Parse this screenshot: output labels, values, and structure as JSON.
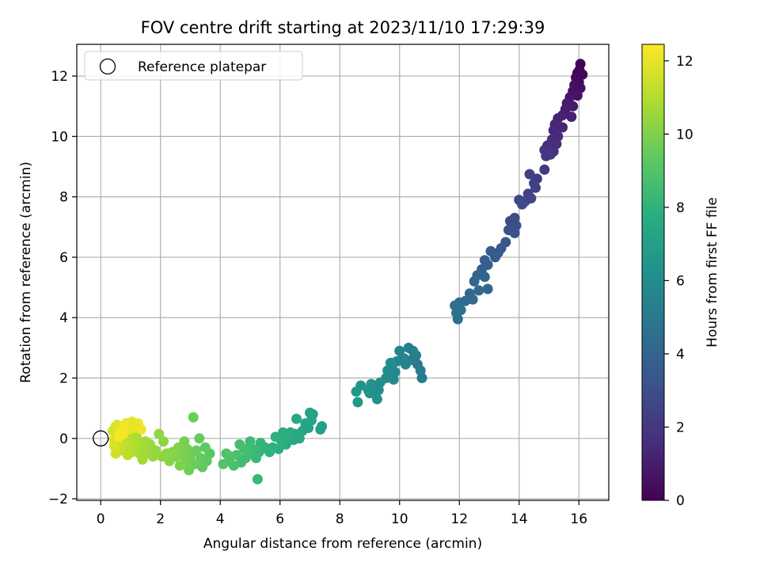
{
  "chart_data": {
    "type": "scatter",
    "title": "FOV centre drift starting at 2023/11/10 17:29:39",
    "xlabel": "Angular distance from reference (arcmin)",
    "ylabel": "Rotation from reference (arcmin)",
    "xlim": [
      -0.8,
      17
    ],
    "ylim": [
      -2.05,
      13.05
    ],
    "xticks": [
      0,
      2,
      4,
      6,
      8,
      10,
      12,
      14,
      16
    ],
    "yticks": [
      -2,
      0,
      2,
      4,
      6,
      8,
      10,
      12
    ],
    "grid": true,
    "legend": {
      "position": "top-left",
      "entries": [
        "Reference platepar"
      ]
    },
    "colorbar": {
      "label": "Hours from first FF file",
      "range": [
        0,
        12.45
      ],
      "ticks": [
        0,
        2,
        4,
        6,
        8,
        10,
        12
      ],
      "colormap": "viridis"
    },
    "reference_point": {
      "x": 0,
      "y": 0
    },
    "series": [
      {
        "marker": "filled-circle",
        "points": [
          [
            16.05,
            12.4,
            0.0
          ],
          [
            16.02,
            12.2,
            0.1
          ],
          [
            15.95,
            12.1,
            0.15
          ],
          [
            16.12,
            12.05,
            0.2
          ],
          [
            15.9,
            11.95,
            0.3
          ],
          [
            16.0,
            11.8,
            0.35
          ],
          [
            15.85,
            11.7,
            0.45
          ],
          [
            16.05,
            11.6,
            0.5
          ],
          [
            15.8,
            11.5,
            0.6
          ],
          [
            15.95,
            11.35,
            0.65
          ],
          [
            15.7,
            11.3,
            0.75
          ],
          [
            15.6,
            11.1,
            0.85
          ],
          [
            15.8,
            11.0,
            0.9
          ],
          [
            15.55,
            10.9,
            1.0
          ],
          [
            15.45,
            10.7,
            1.1
          ],
          [
            15.75,
            10.65,
            1.15
          ],
          [
            15.3,
            10.6,
            1.2
          ],
          [
            15.2,
            10.4,
            1.3
          ],
          [
            15.45,
            10.3,
            1.35
          ],
          [
            15.15,
            10.2,
            1.4
          ],
          [
            15.3,
            10.0,
            1.5
          ],
          [
            15.1,
            9.9,
            1.6
          ],
          [
            15.25,
            9.75,
            1.65
          ],
          [
            14.95,
            9.7,
            1.75
          ],
          [
            15.15,
            9.5,
            1.85
          ],
          [
            14.85,
            9.55,
            1.9
          ],
          [
            15.05,
            9.4,
            1.95
          ],
          [
            14.9,
            9.35,
            2.0
          ],
          [
            14.85,
            8.9,
            2.1
          ],
          [
            14.6,
            8.6,
            2.2
          ],
          [
            14.5,
            8.45,
            2.3
          ],
          [
            14.35,
            8.75,
            2.35
          ],
          [
            14.55,
            8.3,
            2.4
          ],
          [
            14.3,
            8.1,
            2.5
          ],
          [
            14.4,
            7.95,
            2.55
          ],
          [
            14.2,
            7.85,
            2.6
          ],
          [
            14.0,
            7.9,
            2.7
          ],
          [
            14.1,
            7.75,
            2.75
          ],
          [
            13.85,
            7.3,
            2.9
          ],
          [
            13.7,
            7.2,
            3.0
          ],
          [
            13.9,
            7.05,
            3.05
          ],
          [
            13.65,
            6.9,
            3.1
          ],
          [
            13.85,
            6.8,
            3.15
          ],
          [
            13.55,
            6.5,
            3.3
          ],
          [
            13.4,
            6.3,
            3.4
          ],
          [
            13.3,
            6.15,
            3.5
          ],
          [
            13.05,
            6.2,
            3.55
          ],
          [
            13.2,
            6.0,
            3.6
          ],
          [
            12.85,
            5.9,
            3.7
          ],
          [
            12.95,
            5.75,
            3.75
          ],
          [
            12.75,
            5.6,
            3.85
          ],
          [
            12.6,
            5.4,
            3.95
          ],
          [
            12.85,
            5.35,
            4.0
          ],
          [
            12.5,
            5.2,
            4.05
          ],
          [
            12.95,
            4.95,
            4.1
          ],
          [
            12.65,
            4.9,
            4.15
          ],
          [
            12.35,
            4.8,
            4.2
          ],
          [
            12.45,
            4.6,
            4.3
          ],
          [
            12.2,
            4.55,
            4.35
          ],
          [
            12.0,
            4.5,
            4.4
          ],
          [
            11.85,
            4.4,
            4.45
          ],
          [
            12.05,
            4.25,
            4.5
          ],
          [
            11.9,
            4.15,
            4.55
          ],
          [
            11.95,
            3.95,
            4.6
          ],
          [
            10.75,
            2.0,
            5.1
          ],
          [
            10.7,
            2.25,
            5.15
          ],
          [
            10.6,
            2.45,
            5.2
          ],
          [
            10.55,
            2.75,
            5.25
          ],
          [
            10.45,
            2.9,
            5.3
          ],
          [
            10.3,
            3.0,
            5.35
          ],
          [
            10.4,
            2.6,
            5.4
          ],
          [
            10.2,
            2.45,
            5.5
          ],
          [
            10.15,
            2.65,
            5.55
          ],
          [
            10.0,
            2.9,
            5.6
          ],
          [
            10.05,
            2.6,
            5.65
          ],
          [
            9.9,
            2.55,
            5.7
          ],
          [
            9.75,
            2.45,
            5.75
          ],
          [
            9.85,
            2.2,
            5.8
          ],
          [
            9.65,
            2.1,
            5.85
          ],
          [
            9.8,
            1.95,
            5.9
          ],
          [
            9.55,
            2.0,
            5.95
          ],
          [
            9.6,
            2.25,
            6.0
          ],
          [
            9.7,
            2.5,
            6.05
          ],
          [
            9.35,
            1.85,
            6.1
          ],
          [
            9.3,
            1.6,
            6.15
          ],
          [
            9.2,
            1.75,
            6.2
          ],
          [
            9.1,
            1.55,
            6.25
          ],
          [
            9.25,
            1.3,
            6.3
          ],
          [
            9.0,
            1.5,
            6.35
          ],
          [
            9.05,
            1.8,
            6.4
          ],
          [
            8.95,
            1.6,
            6.45
          ],
          [
            8.7,
            1.75,
            6.5
          ],
          [
            8.55,
            1.55,
            6.6
          ],
          [
            8.6,
            1.2,
            6.7
          ],
          [
            7.4,
            0.4,
            7.0
          ],
          [
            7.35,
            0.3,
            7.05
          ],
          [
            7.1,
            0.8,
            7.1
          ],
          [
            7.0,
            0.85,
            7.15
          ],
          [
            7.05,
            0.6,
            7.2
          ],
          [
            6.95,
            0.35,
            7.25
          ],
          [
            6.85,
            0.5,
            7.3
          ],
          [
            6.75,
            0.25,
            7.35
          ],
          [
            6.55,
            0.65,
            7.4
          ],
          [
            6.65,
            0.0,
            7.45
          ],
          [
            6.5,
            0.15,
            7.5
          ],
          [
            6.45,
            -0.05,
            7.55
          ],
          [
            6.35,
            0.2,
            7.6
          ],
          [
            6.25,
            0.1,
            7.65
          ],
          [
            6.2,
            -0.2,
            7.7
          ],
          [
            6.1,
            0.2,
            7.75
          ],
          [
            6.05,
            -0.1,
            7.8
          ],
          [
            5.95,
            -0.35,
            7.85
          ],
          [
            5.85,
            0.05,
            7.9
          ],
          [
            5.75,
            -0.3,
            7.95
          ],
          [
            5.65,
            -0.45,
            8.0
          ],
          [
            5.5,
            -0.3,
            8.05
          ],
          [
            5.35,
            -0.15,
            8.2
          ],
          [
            5.3,
            -0.45,
            8.3
          ],
          [
            5.25,
            -1.35,
            8.35
          ],
          [
            5.2,
            -0.65,
            8.4
          ],
          [
            5.1,
            -0.35,
            8.45
          ],
          [
            5.0,
            -0.1,
            8.5
          ],
          [
            4.95,
            -0.5,
            8.55
          ],
          [
            4.85,
            -0.65,
            8.6
          ],
          [
            4.8,
            -0.35,
            8.65
          ],
          [
            4.7,
            -0.8,
            8.7
          ],
          [
            4.65,
            -0.2,
            8.75
          ],
          [
            4.55,
            -0.55,
            8.8
          ],
          [
            4.45,
            -0.9,
            8.85
          ],
          [
            4.35,
            -0.6,
            8.9
          ],
          [
            4.3,
            -0.75,
            8.95
          ],
          [
            4.2,
            -0.5,
            9.0
          ],
          [
            4.1,
            -0.85,
            9.05
          ],
          [
            3.65,
            -0.5,
            9.2
          ],
          [
            3.55,
            -0.75,
            9.3
          ],
          [
            3.5,
            -0.3,
            9.35
          ],
          [
            3.4,
            -0.95,
            9.4
          ],
          [
            3.35,
            -0.65,
            9.45
          ],
          [
            3.3,
            0.0,
            9.5
          ],
          [
            3.2,
            -0.4,
            9.55
          ],
          [
            3.15,
            -0.85,
            9.6
          ],
          [
            3.1,
            0.7,
            9.65
          ],
          [
            3.0,
            -0.6,
            9.7
          ],
          [
            2.95,
            -1.05,
            9.75
          ],
          [
            2.9,
            -0.35,
            9.8
          ],
          [
            2.85,
            -0.75,
            9.85
          ],
          [
            2.8,
            -0.1,
            9.9
          ],
          [
            2.7,
            -0.55,
            9.95
          ],
          [
            2.65,
            -0.9,
            10.0
          ],
          [
            2.6,
            -0.3,
            10.05
          ],
          [
            2.5,
            -0.6,
            10.1
          ],
          [
            2.4,
            -0.45,
            10.15
          ],
          [
            2.3,
            -0.75,
            10.2
          ],
          [
            2.2,
            -0.5,
            10.25
          ],
          [
            2.1,
            -0.1,
            10.3
          ],
          [
            2.05,
            -0.6,
            10.35
          ],
          [
            1.95,
            0.15,
            10.4
          ],
          [
            1.85,
            -0.4,
            10.45
          ],
          [
            1.75,
            -0.6,
            10.5
          ],
          [
            1.65,
            -0.2,
            10.55
          ],
          [
            1.55,
            -0.5,
            10.6
          ],
          [
            1.5,
            -0.1,
            10.65
          ],
          [
            1.45,
            -0.35,
            10.7
          ],
          [
            1.4,
            -0.7,
            10.75
          ],
          [
            1.3,
            -0.5,
            10.8
          ],
          [
            1.25,
            -0.2,
            10.85
          ],
          [
            1.2,
            0.05,
            10.9
          ],
          [
            1.15,
            -0.3,
            10.95
          ],
          [
            1.05,
            -0.45,
            11.0
          ],
          [
            1.0,
            -0.15,
            11.05
          ],
          [
            0.95,
            0.15,
            11.1
          ],
          [
            0.9,
            -0.55,
            11.15
          ],
          [
            0.85,
            -0.3,
            11.2
          ],
          [
            0.8,
            0.05,
            11.25
          ],
          [
            0.75,
            -0.1,
            11.3
          ],
          [
            0.7,
            0.3,
            11.35
          ],
          [
            0.65,
            -0.4,
            11.4
          ],
          [
            0.6,
            -0.25,
            11.45
          ],
          [
            0.55,
            0.15,
            11.5
          ],
          [
            0.5,
            -0.5,
            11.55
          ],
          [
            0.5,
            0.4,
            11.6
          ],
          [
            0.45,
            -0.05,
            11.65
          ],
          [
            0.4,
            0.25,
            11.7
          ],
          [
            0.45,
            -0.25,
            11.75
          ],
          [
            0.55,
            0.45,
            11.8
          ],
          [
            0.7,
            0.35,
            11.85
          ],
          [
            0.85,
            0.5,
            11.9
          ],
          [
            0.95,
            0.3,
            11.95
          ],
          [
            1.05,
            0.55,
            12.0
          ],
          [
            1.15,
            0.35,
            12.05
          ],
          [
            1.25,
            0.5,
            12.1
          ],
          [
            1.35,
            0.3,
            12.15
          ],
          [
            0.65,
            0.2,
            12.2
          ],
          [
            0.8,
            0.45,
            12.25
          ],
          [
            0.6,
            0.05,
            12.3
          ],
          [
            0.75,
            0.15,
            12.35
          ]
        ]
      }
    ]
  }
}
